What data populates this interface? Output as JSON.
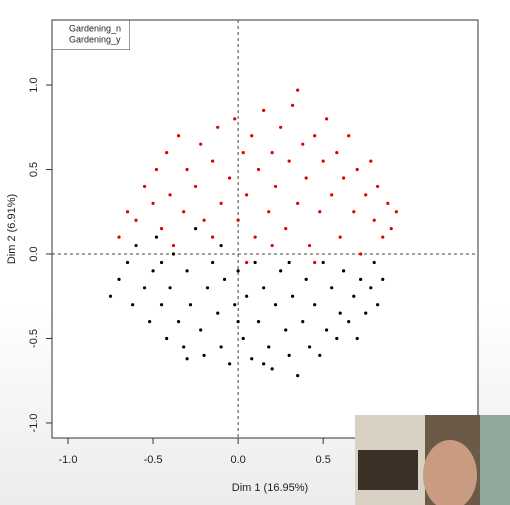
{
  "chart_data": {
    "type": "scatter",
    "xlabel": "Dim 1 (16.95%)",
    "ylabel": "Dim 2 (6.91%)",
    "xlim": [
      -1.094,
      1.41
    ],
    "ylim": [
      -1.089,
      1.385
    ],
    "xticks": [
      {
        "value": -1,
        "label": "-1.0"
      },
      -0.5,
      {
        "value": 0,
        "label": "0.0"
      },
      0.5
    ],
    "yticks": [
      {
        "value": -1,
        "label": "-1.0"
      },
      -0.5,
      {
        "value": 0,
        "label": "0.0"
      },
      0.5,
      {
        "value": 1,
        "label": "1.0"
      }
    ],
    "reference_lines": {
      "x": 0,
      "y": 0
    },
    "legend": "top-left",
    "series": [
      {
        "name": "Gardening_n",
        "color": "#000000",
        "x": [
          -0.75,
          -0.7,
          -0.65,
          -0.62,
          -0.6,
          -0.55,
          -0.52,
          -0.5,
          -0.48,
          -0.45,
          -0.42,
          -0.4,
          -0.38,
          -0.35,
          -0.32,
          -0.3,
          -0.28,
          -0.25,
          -0.22,
          -0.2,
          -0.18,
          -0.15,
          -0.12,
          -0.1,
          -0.08,
          -0.05,
          -0.02,
          0,
          0.03,
          0.05,
          0.08,
          0.1,
          0.12,
          0.15,
          0.18,
          0.2,
          0.22,
          0.25,
          0.28,
          0.3,
          0.32,
          0.35,
          0.38,
          0.4,
          0.42,
          0.45,
          0.48,
          0.5,
          0.52,
          0.55,
          0.58,
          0.6,
          0.62,
          0.65,
          0.68,
          0.7,
          0.72,
          0.75,
          0.78,
          0.8,
          0.82,
          0.85,
          -0.3,
          -0.1,
          0,
          0.15,
          -0.45,
          0.3
        ],
        "y": [
          -0.25,
          -0.15,
          -0.05,
          -0.3,
          0.05,
          -0.2,
          -0.4,
          -0.1,
          0.1,
          -0.3,
          -0.5,
          -0.2,
          0,
          -0.4,
          -0.55,
          -0.1,
          -0.3,
          0.15,
          -0.45,
          -0.6,
          -0.2,
          -0.05,
          -0.35,
          -0.55,
          -0.15,
          -0.65,
          -0.3,
          -0.1,
          -0.5,
          -0.25,
          -0.62,
          -0.05,
          -0.4,
          -0.2,
          -0.55,
          -0.68,
          -0.3,
          -0.1,
          -0.45,
          -0.6,
          -0.25,
          -0.72,
          -0.4,
          -0.15,
          -0.55,
          -0.3,
          -0.6,
          -0.05,
          -0.45,
          -0.2,
          -0.5,
          -0.35,
          -0.1,
          -0.4,
          -0.25,
          -0.5,
          -0.15,
          -0.35,
          -0.2,
          -0.05,
          -0.3,
          -0.15,
          -0.62,
          0.05,
          -0.4,
          -0.65,
          -0.05,
          -0.05
        ]
      },
      {
        "name": "Gardening_y",
        "color": "#e00000",
        "x": [
          -0.7,
          -0.65,
          -0.6,
          -0.55,
          -0.5,
          -0.48,
          -0.45,
          -0.42,
          -0.4,
          -0.35,
          -0.32,
          -0.3,
          -0.25,
          -0.22,
          -0.2,
          -0.15,
          -0.12,
          -0.1,
          -0.05,
          -0.02,
          0,
          0.03,
          0.05,
          0.08,
          0.1,
          0.12,
          0.15,
          0.18,
          0.2,
          0.22,
          0.25,
          0.28,
          0.3,
          0.32,
          0.35,
          0.38,
          0.4,
          0.42,
          0.45,
          0.48,
          0.5,
          0.52,
          0.55,
          0.58,
          0.6,
          0.62,
          0.65,
          0.68,
          0.7,
          0.72,
          0.75,
          0.78,
          0.8,
          0.82,
          0.85,
          0.88,
          0.9,
          0.93,
          -0.38,
          0.05,
          0.35,
          0.2,
          -0.15,
          0.45
        ],
        "y": [
          0.1,
          0.25,
          0.2,
          0.4,
          0.3,
          0.5,
          0.15,
          0.6,
          0.35,
          0.7,
          0.25,
          0.5,
          0.4,
          0.65,
          0.2,
          0.55,
          0.75,
          0.3,
          0.45,
          0.8,
          0.2,
          0.6,
          0.35,
          0.7,
          0.1,
          0.5,
          0.85,
          0.25,
          0.6,
          0.4,
          0.75,
          0.15,
          0.55,
          0.88,
          0.3,
          0.65,
          0.45,
          0.05,
          0.7,
          0.25,
          0.55,
          0.8,
          0.35,
          0.6,
          0.1,
          0.45,
          0.7,
          0.25,
          0.5,
          0,
          0.35,
          0.55,
          0.2,
          0.4,
          0.1,
          0.3,
          0.15,
          0.25,
          0.05,
          -0.05,
          0.97,
          0.05,
          0.1,
          -0.05
        ]
      }
    ]
  }
}
